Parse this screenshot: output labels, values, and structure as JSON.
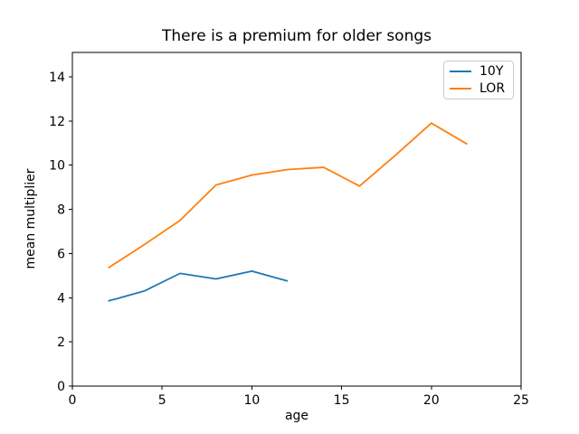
{
  "chart_data": {
    "type": "line",
    "title": "There is a premium for older songs",
    "xlabel": "age",
    "ylabel": "mean multiplier",
    "xlim": [
      0,
      25
    ],
    "ylim": [
      0,
      15.1
    ],
    "xticks": [
      0,
      5,
      10,
      15,
      20,
      25
    ],
    "yticks": [
      0,
      2,
      4,
      6,
      8,
      10,
      12,
      14
    ],
    "grid": false,
    "legend": {
      "position": "upper right",
      "entries": [
        "10Y",
        "LOR"
      ]
    },
    "series": [
      {
        "name": "10Y",
        "color": "#1f77b4",
        "x": [
          2,
          4,
          6,
          8,
          10,
          12
        ],
        "y": [
          3.85,
          4.3,
          5.1,
          4.85,
          5.2,
          4.75
        ]
      },
      {
        "name": "LOR",
        "color": "#ff7f0e",
        "x": [
          2,
          4,
          6,
          8,
          10,
          12,
          14,
          16,
          18,
          20,
          22
        ],
        "y": [
          5.35,
          6.4,
          7.5,
          9.1,
          9.55,
          9.8,
          9.9,
          9.05,
          10.45,
          11.9,
          10.95
        ]
      }
    ]
  }
}
